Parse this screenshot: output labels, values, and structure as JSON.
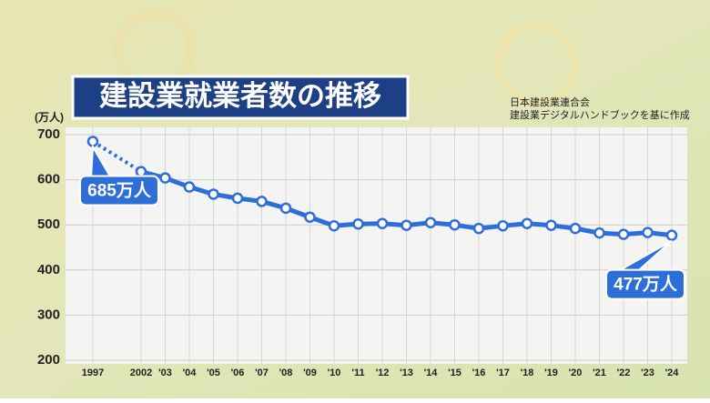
{
  "chart_data": {
    "type": "line",
    "title": "建設業就業者数の推移",
    "source": [
      "日本建設業連合会",
      "建設業デジタルハンドブックを基に作成"
    ],
    "y_axis_label": "(万人)",
    "categories": [
      "1997",
      "2002",
      "'03",
      "'04",
      "'05",
      "'06",
      "'07",
      "'08",
      "'09",
      "'10",
      "'11",
      "'12",
      "'13",
      "'14",
      "'15",
      "'16",
      "'17",
      "'18",
      "'19",
      "'20",
      "'21",
      "'22",
      "'23",
      "'24"
    ],
    "values": [
      685,
      618,
      604,
      584,
      568,
      559,
      552,
      537,
      517,
      498,
      502,
      503,
      499,
      505,
      500,
      492,
      498,
      503,
      499,
      492,
      482,
      479,
      483,
      477
    ],
    "value_labels": [
      "685万人",
      null,
      null,
      null,
      null,
      null,
      null,
      null,
      null,
      null,
      null,
      null,
      null,
      null,
      null,
      null,
      null,
      null,
      null,
      null,
      null,
      null,
      null,
      "477万人"
    ],
    "dotted_segments": [
      0
    ],
    "color": "#2e6ed8",
    "ylim": [
      200,
      700
    ],
    "yticks": [
      200,
      300,
      400,
      500,
      600,
      700
    ],
    "grid": true
  }
}
